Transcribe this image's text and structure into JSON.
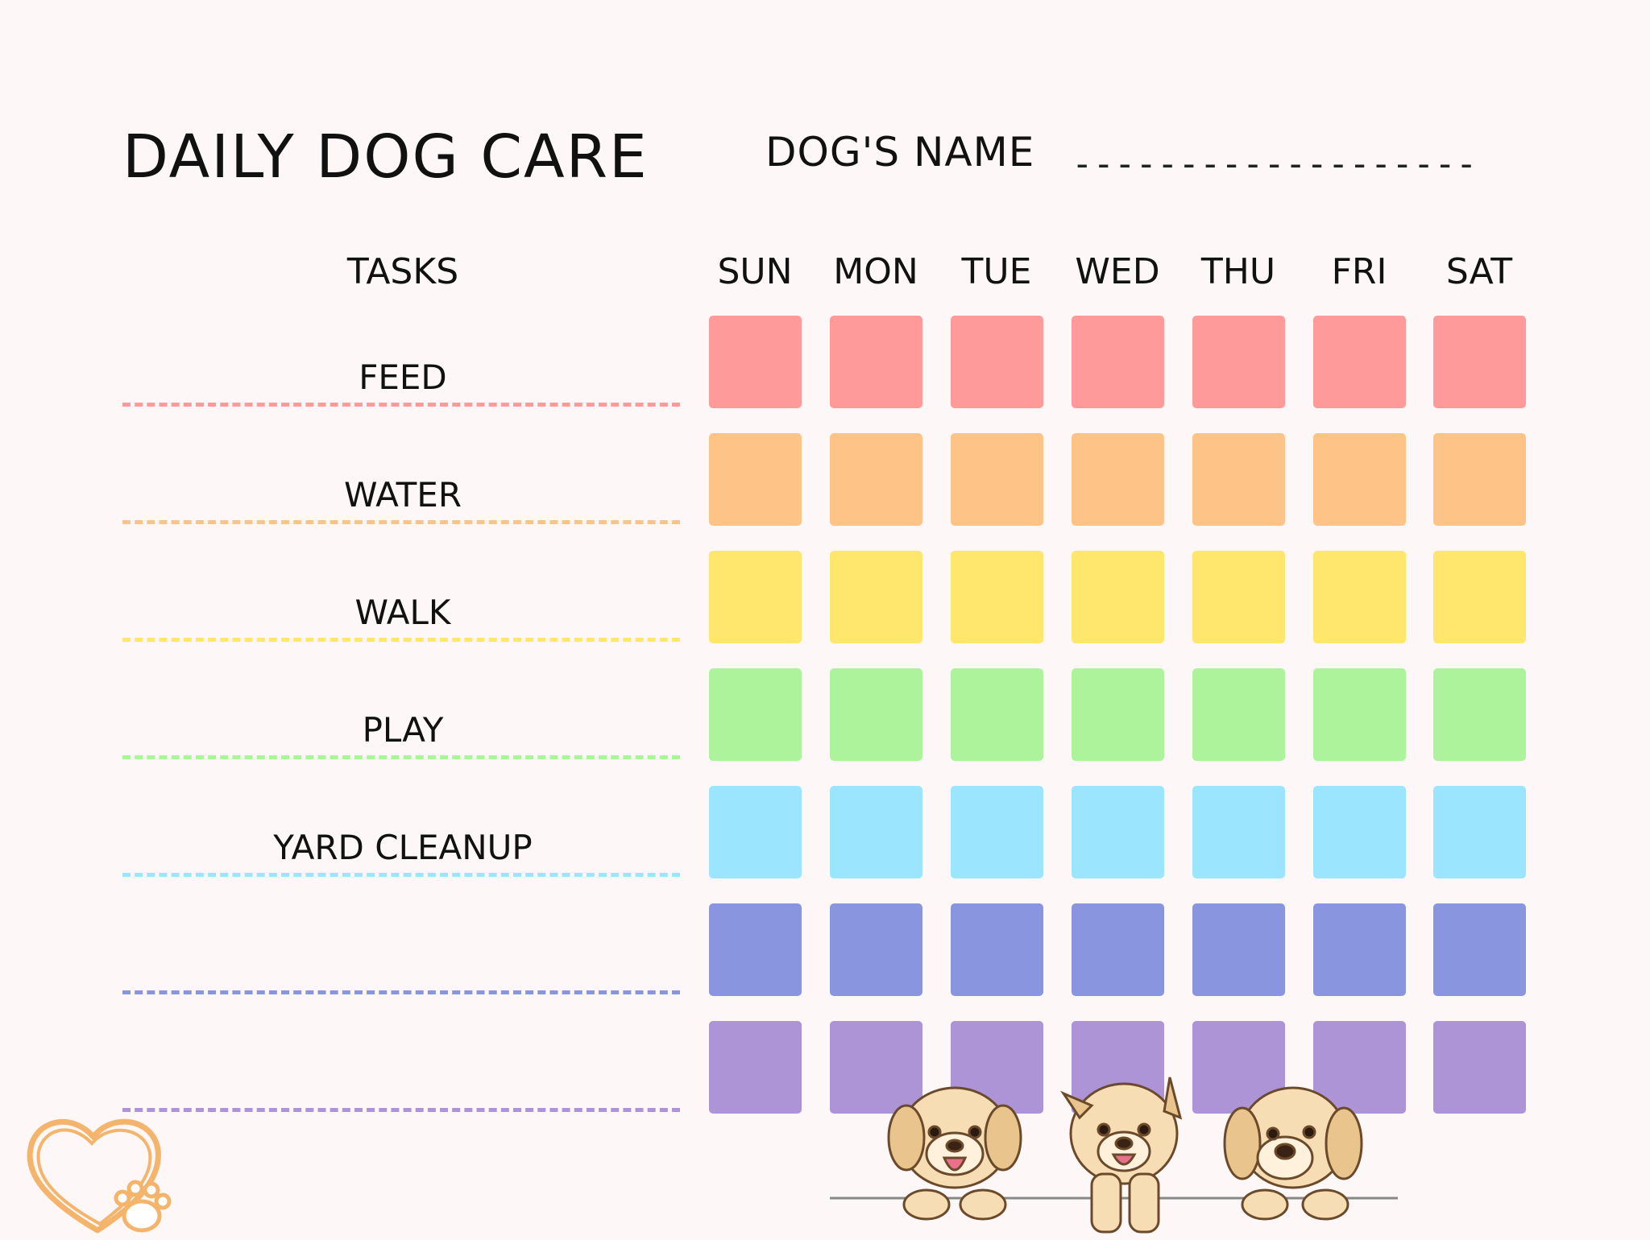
{
  "header": {
    "title": "DAILY DOG CARE",
    "name_label": "DOG'S NAME",
    "name_blank": "-------------------"
  },
  "table": {
    "tasks_header": "TASKS",
    "days": [
      "SUN",
      "MON",
      "TUE",
      "WED",
      "THU",
      "FRI",
      "SAT"
    ],
    "rows": [
      {
        "task": "FEED",
        "color": "#ff9a9a"
      },
      {
        "task": "WATER",
        "color": "#fec387"
      },
      {
        "task": "WALK",
        "color": "#ffe66d"
      },
      {
        "task": "PLAY",
        "color": "#adf39c"
      },
      {
        "task": "YARD CLEANUP",
        "color": "#9be6fe"
      },
      {
        "task": "",
        "color": "#8996df"
      },
      {
        "task": "",
        "color": "#ac94d6"
      }
    ]
  },
  "decorations": {
    "heart_logo_icon": "heart-paw-icon",
    "puppies_icon": "puppies-illustration",
    "heart_color": "#f5b46c"
  }
}
